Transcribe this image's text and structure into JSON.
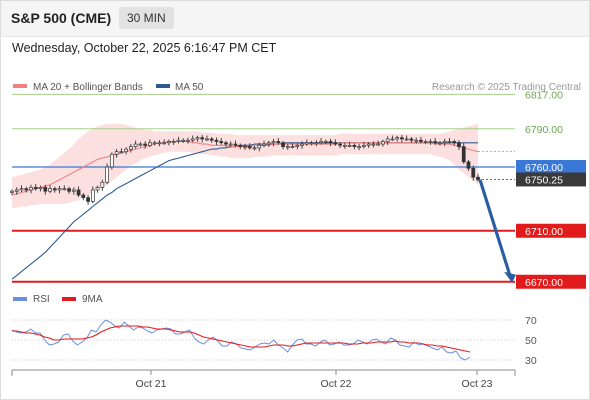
{
  "header": {
    "title": "S&P 500 (CME)",
    "timeframe": "30 MIN",
    "datetime": "Wednesday, October 22, 2025 6:16:47 PM CET"
  },
  "legend": {
    "ma20_label": "MA 20 + Bollinger Bands",
    "ma50_label": "MA 50",
    "credit": "Research © 2025 Trading Central",
    "rsi_label": "RSI",
    "rsi_ma_label": "9MA"
  },
  "colors": {
    "ma20": "#f08080",
    "ma50": "#2e5a94",
    "band_fill": "#fbdada",
    "resistance": "#a8d08a",
    "pivot": "#3a78d8",
    "support": "#e11b1b",
    "price": "#333333",
    "arrow": "#2a5ea0",
    "rsi": "#6b8fe0",
    "rsi_ma": "#e11b1b"
  },
  "chart_data": [
    {
      "type": "candlestick",
      "title": "",
      "x_tick_labels": [
        "Oct 21",
        "Oct 22",
        "Oct 23"
      ],
      "y_range": [
        6640,
        6840
      ],
      "levels": [
        {
          "value": 6817.0,
          "label": "6817.00",
          "kind": "resistance"
        },
        {
          "value": 6790.0,
          "label": "6790.00",
          "kind": "resistance"
        },
        {
          "value": 6760.0,
          "label": "6760.00",
          "kind": "pivot"
        },
        {
          "value": 6710.0,
          "label": "6710.00",
          "kind": "support"
        },
        {
          "value": 6670.0,
          "label": "6670.00",
          "kind": "support"
        }
      ],
      "last_price": {
        "value": 6750.25,
        "label": "6750.25"
      },
      "projection": {
        "from": 6750,
        "to": 6670,
        "direction": "down"
      },
      "series": [
        {
          "name": "Price (close)",
          "values": [
            6741,
            6742,
            6743,
            6742,
            6744,
            6743,
            6744,
            6741,
            6743,
            6742,
            6743,
            6743,
            6741,
            6742,
            6738,
            6736,
            6733,
            6742,
            6744,
            6748,
            6760,
            6770,
            6772,
            6772,
            6774,
            6776,
            6778,
            6778,
            6777,
            6779,
            6779,
            6779,
            6779,
            6780,
            6780,
            6781,
            6781,
            6781,
            6782,
            6783,
            6782,
            6782,
            6781,
            6780,
            6779,
            6778,
            6778,
            6777,
            6776,
            6776,
            6775,
            6775,
            6777,
            6778,
            6779,
            6780,
            6779,
            6776,
            6776,
            6776,
            6777,
            6778,
            6779,
            6779,
            6779,
            6780,
            6780,
            6779,
            6778,
            6777,
            6777,
            6777,
            6776,
            6776,
            6777,
            6778,
            6778,
            6778,
            6780,
            6782,
            6782,
            6783,
            6782,
            6782,
            6781,
            6781,
            6780,
            6780,
            6780,
            6779,
            6779,
            6780,
            6780,
            6779,
            6776,
            6764,
            6759,
            6752,
            6750
          ]
        },
        {
          "name": "MA 20",
          "values": [
            6738,
            6739,
            6740,
            6741,
            6742,
            6743,
            6744,
            6745,
            6746,
            6748,
            6750,
            6752,
            6754,
            6756,
            6758,
            6760,
            6762,
            6764,
            6766,
            6767,
            6768,
            6769,
            6770,
            6771,
            6772,
            6773,
            6774,
            6775,
            6776,
            6777,
            6778,
            6779,
            6779,
            6780,
            6780,
            6780,
            6780,
            6780,
            6779,
            6779,
            6778,
            6778,
            6777,
            6777,
            6777,
            6777,
            6776,
            6776,
            6776,
            6776,
            6776,
            6777,
            6777,
            6777,
            6777,
            6778,
            6778,
            6778,
            6778,
            6778,
            6778,
            6778,
            6778,
            6778,
            6778,
            6778,
            6778,
            6778,
            6778,
            6779,
            6779,
            6779,
            6779,
            6779,
            6779,
            6779,
            6779,
            6779,
            6779,
            6779,
            6779,
            6779,
            6779,
            6779,
            6779,
            6779,
            6779,
            6779,
            6779,
            6778,
            6778,
            6778,
            6778,
            6777,
            6776,
            6775,
            6774,
            6773,
            6772
          ]
        },
        {
          "name": "MA 50",
          "values": [
            6672,
            6675,
            6678,
            6681,
            6684,
            6687,
            6690,
            6693,
            6697,
            6701,
            6705,
            6709,
            6713,
            6717,
            6720,
            6723,
            6726,
            6729,
            6732,
            6735,
            6738,
            6740,
            6743,
            6745,
            6747,
            6749,
            6751,
            6753,
            6755,
            6757,
            6759,
            6761,
            6763,
            6765,
            6766,
            6767,
            6768,
            6769,
            6770,
            6771,
            6772,
            6773,
            6774,
            6774,
            6775,
            6775,
            6776,
            6776,
            6777,
            6777,
            6777,
            6778,
            6778,
            6778,
            6778,
            6778,
            6778,
            6779,
            6779,
            6779,
            6779,
            6779,
            6779,
            6779,
            6779,
            6779,
            6779,
            6779,
            6779,
            6779,
            6779,
            6779,
            6779,
            6779,
            6779,
            6779,
            6779,
            6779,
            6779,
            6779,
            6779,
            6779,
            6779,
            6779,
            6779,
            6779,
            6779,
            6779,
            6779,
            6779,
            6779,
            6779,
            6779,
            6779,
            6779,
            6779,
            6779,
            6779,
            6779
          ]
        },
        {
          "name": "BB Upper",
          "values": [
            6752,
            6753,
            6754,
            6755,
            6756,
            6757,
            6758,
            6760,
            6762,
            6765,
            6768,
            6771,
            6774,
            6778,
            6782,
            6785,
            6788,
            6790,
            6792,
            6793,
            6794,
            6794,
            6794,
            6794,
            6793,
            6792,
            6791,
            6790,
            6789,
            6789,
            6788,
            6788,
            6788,
            6788,
            6788,
            6788,
            6788,
            6788,
            6788,
            6788,
            6787,
            6787,
            6787,
            6786,
            6786,
            6786,
            6786,
            6785,
            6785,
            6785,
            6785,
            6785,
            6785,
            6785,
            6785,
            6785,
            6785,
            6785,
            6785,
            6785,
            6785,
            6785,
            6785,
            6785,
            6785,
            6785,
            6785,
            6785,
            6785,
            6786,
            6786,
            6786,
            6786,
            6786,
            6786,
            6786,
            6786,
            6786,
            6786,
            6786,
            6786,
            6786,
            6786,
            6786,
            6786,
            6786,
            6786,
            6786,
            6786,
            6786,
            6786,
            6787,
            6788,
            6789,
            6790,
            6791,
            6792,
            6793,
            6794
          ]
        },
        {
          "name": "BB Lower",
          "values": [
            6728,
            6728,
            6729,
            6729,
            6730,
            6730,
            6731,
            6731,
            6731,
            6731,
            6731,
            6731,
            6732,
            6733,
            6734,
            6736,
            6738,
            6740,
            6742,
            6744,
            6746,
            6749,
            6752,
            6755,
            6758,
            6761,
            6763,
            6765,
            6767,
            6768,
            6769,
            6770,
            6771,
            6772,
            6772,
            6772,
            6772,
            6772,
            6771,
            6771,
            6770,
            6770,
            6769,
            6769,
            6768,
            6768,
            6767,
            6767,
            6767,
            6767,
            6767,
            6768,
            6768,
            6768,
            6768,
            6769,
            6769,
            6769,
            6769,
            6769,
            6769,
            6769,
            6769,
            6769,
            6769,
            6769,
            6769,
            6769,
            6769,
            6770,
            6770,
            6770,
            6770,
            6770,
            6770,
            6770,
            6770,
            6770,
            6770,
            6770,
            6770,
            6770,
            6770,
            6770,
            6770,
            6770,
            6770,
            6770,
            6770,
            6769,
            6768,
            6767,
            6765,
            6762,
            6758,
            6755,
            6752,
            6749,
            6746
          ]
        }
      ]
    },
    {
      "type": "line",
      "title": "",
      "y_tick_labels": [
        "70",
        "50",
        "30"
      ],
      "y_range": [
        20,
        80
      ],
      "series": [
        {
          "name": "RSI",
          "values": [
            60,
            58,
            57,
            58,
            61,
            57,
            57,
            50,
            45,
            46,
            48,
            55,
            56,
            49,
            45,
            48,
            52,
            60,
            58,
            65,
            70,
            68,
            64,
            62,
            68,
            64,
            60,
            63,
            62,
            59,
            57,
            60,
            61,
            62,
            61,
            56,
            56,
            58,
            60,
            52,
            48,
            46,
            50,
            53,
            49,
            44,
            44,
            48,
            46,
            42,
            41,
            40,
            43,
            46,
            47,
            46,
            50,
            45,
            42,
            38,
            45,
            50,
            51,
            46,
            46,
            44,
            48,
            50,
            45,
            46,
            48,
            45,
            45,
            46,
            50,
            48,
            46,
            50,
            51,
            48,
            46,
            52,
            50,
            45,
            44,
            43,
            48,
            45,
            46,
            44,
            42,
            40,
            43,
            38,
            37,
            39,
            32,
            30,
            33
          ]
        },
        {
          "name": "9MA",
          "values": [
            59,
            59,
            58,
            57,
            57,
            56,
            55,
            53,
            52,
            50,
            50,
            51,
            51,
            51,
            51,
            51,
            52,
            53,
            55,
            58,
            60,
            62,
            63,
            64,
            64,
            64,
            64,
            64,
            63,
            63,
            62,
            61,
            61,
            61,
            60,
            59,
            58,
            58,
            58,
            57,
            55,
            53,
            52,
            51,
            50,
            49,
            48,
            47,
            46,
            45,
            44,
            43,
            43,
            43,
            43,
            44,
            45,
            45,
            45,
            44,
            44,
            45,
            46,
            47,
            47,
            47,
            47,
            47,
            47,
            47,
            47,
            47,
            46,
            46,
            46,
            47,
            47,
            47,
            48,
            48,
            48,
            48,
            49,
            48,
            48,
            47,
            47,
            47,
            46,
            45,
            45,
            44,
            44,
            43,
            42,
            41,
            40,
            39,
            38
          ]
        }
      ]
    }
  ]
}
